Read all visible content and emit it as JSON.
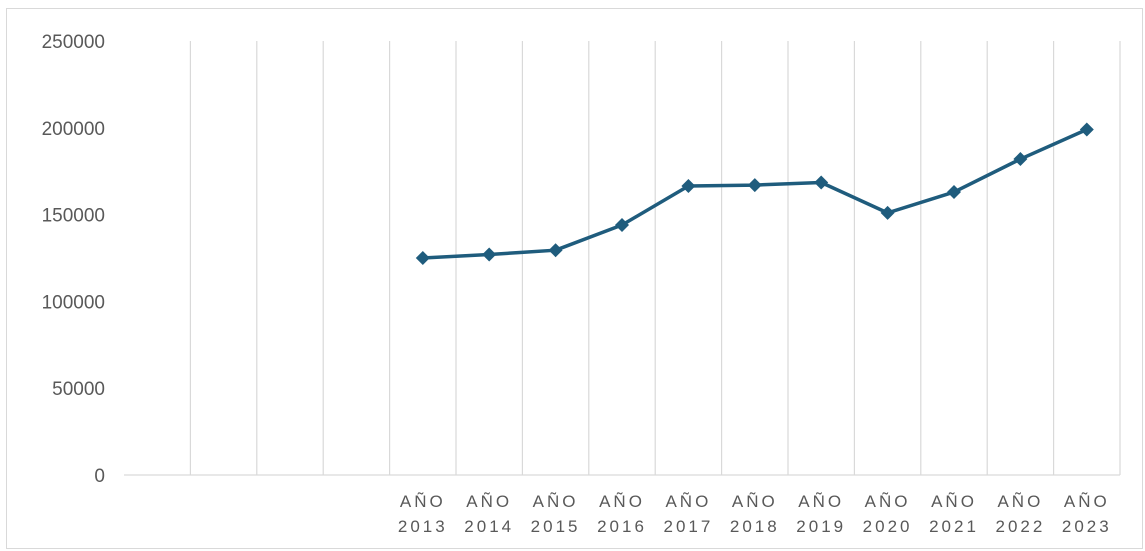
{
  "chart_data": {
    "type": "line",
    "title": "",
    "xlabel": "",
    "ylabel": "",
    "ylim": [
      0,
      250000
    ],
    "yticks": [
      "0",
      "50000",
      "100000",
      "150000",
      "200000",
      "250000"
    ],
    "categories": [
      {
        "line1": "",
        "line2": ""
      },
      {
        "line1": "",
        "line2": ""
      },
      {
        "line1": "",
        "line2": ""
      },
      {
        "line1": "",
        "line2": ""
      },
      {
        "line1": "AÑO",
        "line2": "2013"
      },
      {
        "line1": "AÑO",
        "line2": "2014"
      },
      {
        "line1": "AÑO",
        "line2": "2015"
      },
      {
        "line1": "AÑO",
        "line2": "2016"
      },
      {
        "line1": "AÑO",
        "line2": "2017"
      },
      {
        "line1": "AÑO",
        "line2": "2018"
      },
      {
        "line1": "AÑO",
        "line2": "2019"
      },
      {
        "line1": "AÑO",
        "line2": "2020"
      },
      {
        "line1": "AÑO",
        "line2": "2021"
      },
      {
        "line1": "AÑO",
        "line2": "2022"
      },
      {
        "line1": "AÑO",
        "line2": "2023"
      }
    ],
    "series": [
      {
        "values": [
          null,
          null,
          null,
          null,
          125000,
          127000,
          129500,
          144000,
          166500,
          167000,
          168500,
          151000,
          163000,
          182000,
          199000
        ],
        "color": "#1f5c7d",
        "marker": "diamond"
      }
    ],
    "grid": "vertical",
    "legend": "none"
  }
}
